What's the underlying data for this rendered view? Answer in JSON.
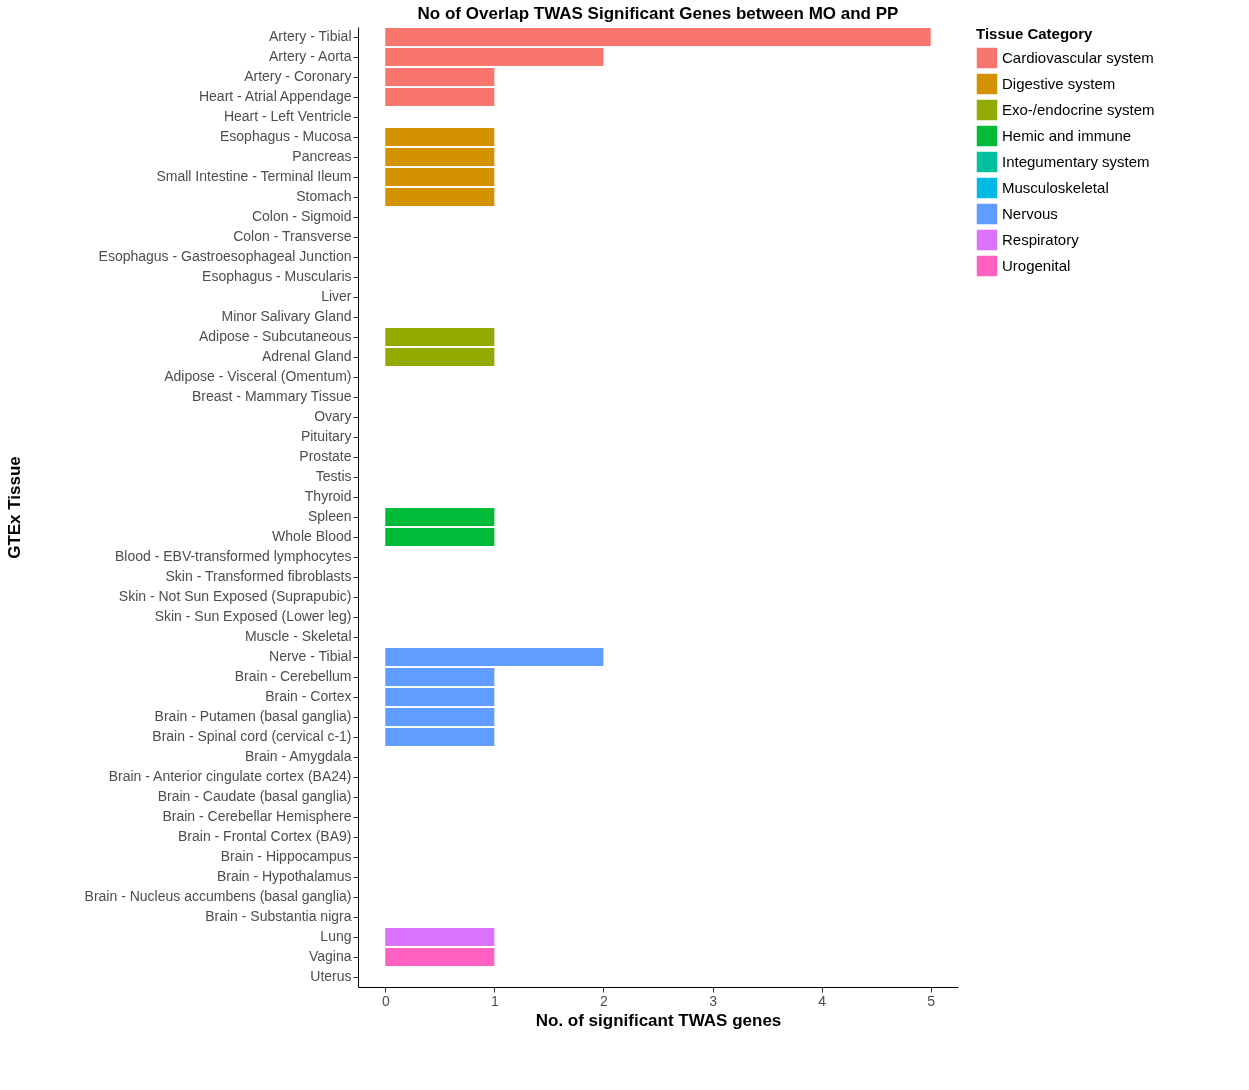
{
  "chart_data": {
    "type": "bar",
    "orientation": "horizontal",
    "title": "No of Overlap TWAS Significant Genes between MO and PP",
    "xlabel": "No. of significant TWAS genes",
    "ylabel": "GTEx Tissue",
    "legend_title": "Tissue Category",
    "legend": "right",
    "grid": false,
    "xlim": [
      -0.25,
      5.25
    ],
    "xticks": [
      0,
      1,
      2,
      3,
      4,
      5
    ],
    "categories": [
      "Artery - Tibial",
      "Artery - Aorta",
      "Artery - Coronary",
      "Heart - Atrial Appendage",
      "Heart - Left Ventricle",
      "Esophagus - Mucosa",
      "Pancreas",
      "Small Intestine - Terminal Ileum",
      "Stomach",
      "Colon - Sigmoid",
      "Colon - Transverse",
      "Esophagus - Gastroesophageal Junction",
      "Esophagus - Muscularis",
      "Liver",
      "Minor Salivary Gland",
      "Adipose - Subcutaneous",
      "Adrenal Gland",
      "Adipose - Visceral (Omentum)",
      "Breast - Mammary Tissue",
      "Ovary",
      "Pituitary",
      "Prostate",
      "Testis",
      "Thyroid",
      "Spleen",
      "Whole Blood",
      "Blood - EBV-transformed lymphocytes",
      "Skin - Transformed fibroblasts",
      "Skin - Not Sun Exposed (Suprapubic)",
      "Skin - Sun Exposed (Lower leg)",
      "Muscle - Skeletal",
      "Nerve - Tibial",
      "Brain - Cerebellum",
      "Brain - Cortex",
      "Brain - Putamen (basal ganglia)",
      "Brain - Spinal cord (cervical c-1)",
      "Brain - Amygdala",
      "Brain - Anterior cingulate cortex (BA24)",
      "Brain - Caudate (basal ganglia)",
      "Brain - Cerebellar Hemisphere",
      "Brain - Frontal Cortex (BA9)",
      "Brain - Hippocampus",
      "Brain - Hypothalamus",
      "Brain - Nucleus accumbens (basal ganglia)",
      "Brain - Substantia nigra",
      "Lung",
      "Vagina",
      "Uterus"
    ],
    "series": [
      {
        "name": "Cardiovascular system",
        "color": "#f8766d",
        "values": [
          5,
          2,
          1,
          1,
          0,
          null,
          null,
          null,
          null,
          null,
          null,
          null,
          null,
          null,
          null,
          null,
          null,
          null,
          null,
          null,
          null,
          null,
          null,
          null,
          null,
          null,
          null,
          null,
          null,
          null,
          null,
          null,
          null,
          null,
          null,
          null,
          null,
          null,
          null,
          null,
          null,
          null,
          null,
          null,
          null,
          null,
          null,
          null
        ]
      },
      {
        "name": "Digestive system",
        "color": "#d39200",
        "values": [
          null,
          null,
          null,
          null,
          null,
          1,
          1,
          1,
          1,
          0,
          0,
          0,
          0,
          0,
          0,
          null,
          null,
          null,
          null,
          null,
          null,
          null,
          null,
          null,
          null,
          null,
          null,
          null,
          null,
          null,
          null,
          null,
          null,
          null,
          null,
          null,
          null,
          null,
          null,
          null,
          null,
          null,
          null,
          null,
          null,
          null,
          null,
          null
        ]
      },
      {
        "name": "Exo-/endocrine system",
        "color": "#93aa00",
        "values": [
          null,
          null,
          null,
          null,
          null,
          null,
          null,
          null,
          null,
          null,
          null,
          null,
          null,
          null,
          null,
          1,
          1,
          0,
          0,
          0,
          0,
          0,
          0,
          0,
          null,
          null,
          null,
          null,
          null,
          null,
          null,
          null,
          null,
          null,
          null,
          null,
          null,
          null,
          null,
          null,
          null,
          null,
          null,
          null,
          null,
          null,
          null,
          null
        ]
      },
      {
        "name": "Hemic and immune",
        "color": "#00ba38",
        "values": [
          null,
          null,
          null,
          null,
          null,
          null,
          null,
          null,
          null,
          null,
          null,
          null,
          null,
          null,
          null,
          null,
          null,
          null,
          null,
          null,
          null,
          null,
          null,
          null,
          1,
          1,
          0,
          null,
          null,
          null,
          null,
          null,
          null,
          null,
          null,
          null,
          null,
          null,
          null,
          null,
          null,
          null,
          null,
          null,
          null,
          null,
          null,
          null
        ]
      },
      {
        "name": "Integumentary system",
        "color": "#00c19f",
        "values": [
          null,
          null,
          null,
          null,
          null,
          null,
          null,
          null,
          null,
          null,
          null,
          null,
          null,
          null,
          null,
          null,
          null,
          null,
          null,
          null,
          null,
          null,
          null,
          null,
          null,
          null,
          null,
          0,
          0,
          0,
          null,
          null,
          null,
          null,
          null,
          null,
          null,
          null,
          null,
          null,
          null,
          null,
          null,
          null,
          null,
          null,
          null,
          null
        ]
      },
      {
        "name": "Musculoskeletal",
        "color": "#00b9e3",
        "values": [
          null,
          null,
          null,
          null,
          null,
          null,
          null,
          null,
          null,
          null,
          null,
          null,
          null,
          null,
          null,
          null,
          null,
          null,
          null,
          null,
          null,
          null,
          null,
          null,
          null,
          null,
          null,
          null,
          null,
          null,
          0,
          null,
          null,
          null,
          null,
          null,
          null,
          null,
          null,
          null,
          null,
          null,
          null,
          null,
          null,
          null,
          null,
          null
        ]
      },
      {
        "name": "Nervous",
        "color": "#619cff",
        "values": [
          null,
          null,
          null,
          null,
          null,
          null,
          null,
          null,
          null,
          null,
          null,
          null,
          null,
          null,
          null,
          null,
          null,
          null,
          null,
          null,
          null,
          null,
          null,
          null,
          null,
          null,
          null,
          null,
          null,
          null,
          null,
          2,
          1,
          1,
          1,
          1,
          0,
          0,
          0,
          0,
          0,
          0,
          0,
          0,
          0,
          null,
          null,
          null
        ]
      },
      {
        "name": "Respiratory",
        "color": "#db72fb",
        "values": [
          null,
          null,
          null,
          null,
          null,
          null,
          null,
          null,
          null,
          null,
          null,
          null,
          null,
          null,
          null,
          null,
          null,
          null,
          null,
          null,
          null,
          null,
          null,
          null,
          null,
          null,
          null,
          null,
          null,
          null,
          null,
          null,
          null,
          null,
          null,
          null,
          null,
          null,
          null,
          null,
          null,
          null,
          null,
          null,
          null,
          1,
          null,
          null
        ]
      },
      {
        "name": "Urogenital",
        "color": "#ff61c3",
        "values": [
          null,
          null,
          null,
          null,
          null,
          null,
          null,
          null,
          null,
          null,
          null,
          null,
          null,
          null,
          null,
          null,
          null,
          null,
          null,
          null,
          null,
          null,
          null,
          null,
          null,
          null,
          null,
          null,
          null,
          null,
          null,
          null,
          null,
          null,
          null,
          null,
          null,
          null,
          null,
          null,
          null,
          null,
          null,
          null,
          null,
          null,
          1,
          0
        ]
      }
    ]
  }
}
